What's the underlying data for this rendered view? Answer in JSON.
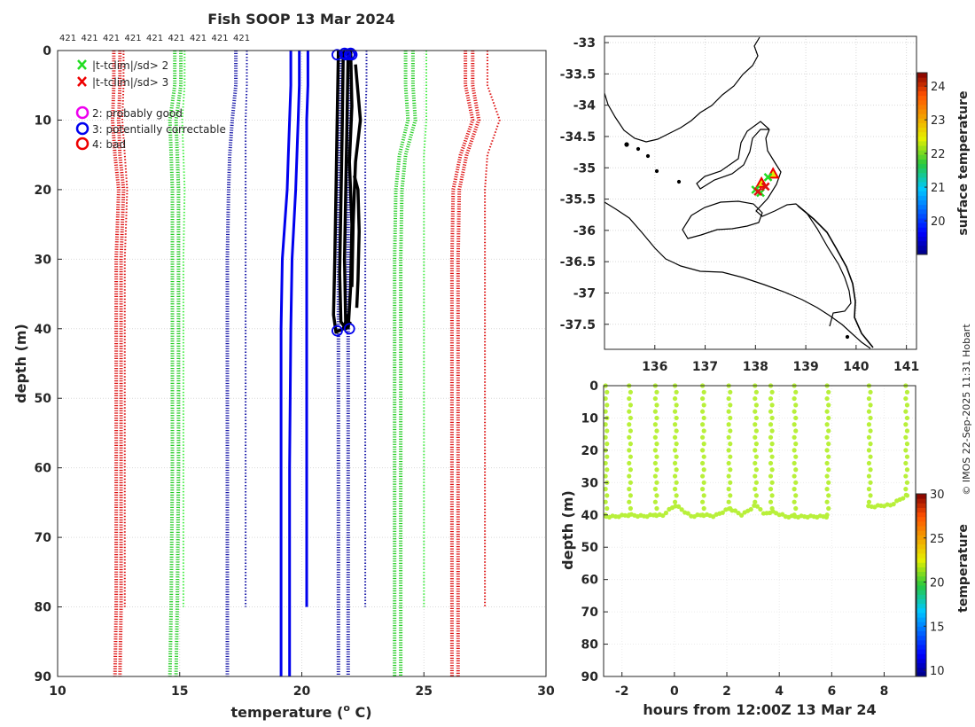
{
  "copyright": "© IMOS 22-Sep-2025 11:31 Hobart",
  "chart_data": [
    {
      "id": "profiles",
      "type": "line",
      "title": "Fish SOOP 13 Mar 2024",
      "xlabel": "temperature (",
      "xlabel_degree": "o",
      "xlabel_tail": " C)",
      "ylabel": "depth (m)",
      "xlim": [
        10,
        30
      ],
      "ylim": [
        0,
        90
      ],
      "y_reversed": true,
      "grid": true,
      "xticks": [
        10,
        15,
        20,
        25,
        30
      ],
      "yticks": [
        0,
        10,
        20,
        30,
        40,
        50,
        60,
        70,
        80,
        90
      ],
      "top_counts": [
        "421",
        "421",
        "421",
        "421",
        "421",
        "421",
        "421",
        "421",
        "421"
      ],
      "legend": {
        "position": "top-left",
        "flags": [
          {
            "label": "|t-tclim|/sd> 2",
            "color": "#22dd22"
          },
          {
            "label": "|t-tclim|/sd> 3",
            "color": "#ee0000"
          }
        ],
        "qc": [
          {
            "label": "2: probably good",
            "color": "#ee00ee"
          },
          {
            "label": "3: potentially correctable",
            "color": "#0000ee"
          },
          {
            "label": "4: bad",
            "color": "#ee0000"
          }
        ]
      },
      "depths": [
        0,
        5,
        10,
        15,
        20,
        30,
        40,
        60,
        80,
        90
      ],
      "climatology": [
        {
          "name": "clim mean",
          "color": "#0000ee",
          "style": "solid",
          "width": 3,
          "temps": [
            [
              19.55,
              19.55,
              19.5,
              19.45,
              19.4,
              19.2,
              19.15,
              19.15,
              19.15,
              19.15
            ],
            [
              19.9,
              19.9,
              19.85,
              19.8,
              19.75,
              19.6,
              19.55,
              19.5,
              19.5,
              19.5
            ],
            [
              20.25,
              20.25,
              20.2,
              20.2,
              20.2,
              20.2,
              20.2,
              20.2,
              20.2,
              null
            ]
          ]
        },
        {
          "name": "mean-2sd",
          "color": "#1a1aa8",
          "style": "dotted",
          "width": 4,
          "temps": [
            [
              17.3,
              17.3,
              17.15,
              17.05,
              17.0,
              16.95,
              16.95,
              16.95,
              16.95,
              16.95
            ]
          ]
        },
        {
          "name": "mean+2sd",
          "color": "#1a1aa8",
          "style": "dotted",
          "width": 4,
          "temps": [
            [
              21.6,
              21.6,
              21.55,
              21.55,
              21.5,
              21.5,
              21.5,
              21.5,
              21.5,
              21.5
            ],
            [
              22.0,
              22.0,
              21.95,
              21.95,
              21.9,
              21.9,
              21.9,
              21.9,
              21.9,
              21.9
            ]
          ]
        },
        {
          "name": "mean-2sd outer",
          "color": "#1a1aa8",
          "style": "dotted",
          "width": 2,
          "temps": [
            [
              17.75,
              17.75,
              17.7,
              17.7,
              17.7,
              17.7,
              17.7,
              17.7,
              17.7,
              null
            ],
            [
              22.65,
              22.65,
              22.6,
              22.6,
              22.6,
              22.6,
              22.6,
              22.6,
              22.6,
              null
            ]
          ]
        },
        {
          "name": "-2sd",
          "color": "#22cc22",
          "style": "dotted",
          "width": 4,
          "temps": [
            [
              14.8,
              14.8,
              14.6,
              14.65,
              14.7,
              14.7,
              14.7,
              14.7,
              14.65,
              14.6
            ],
            [
              15.05,
              15.05,
              14.85,
              14.9,
              14.95,
              14.95,
              14.95,
              14.95,
              14.9,
              14.85
            ]
          ]
        },
        {
          "name": "-2sd outer",
          "color": "#44ee44",
          "style": "dotted",
          "width": 2,
          "temps": [
            [
              15.2,
              15.2,
              15.1,
              15.15,
              15.2,
              15.15,
              15.15,
              15.15,
              15.15,
              null
            ]
          ]
        },
        {
          "name": "+2sd",
          "color": "#22cc22",
          "style": "dotted",
          "width": 4,
          "temps": [
            [
              24.25,
              24.25,
              24.35,
              24.0,
              23.85,
              23.8,
              23.8,
              23.8,
              23.8,
              23.8
            ],
            [
              24.55,
              24.55,
              24.65,
              24.25,
              24.1,
              24.05,
              24.05,
              24.05,
              24.05,
              24.05
            ]
          ]
        },
        {
          "name": "+2sd outer",
          "color": "#44ee44",
          "style": "dotted",
          "width": 2,
          "temps": [
            [
              25.1,
              25.1,
              25.1,
              25.0,
              25.0,
              25.0,
              25.0,
              25.0,
              25.0,
              null
            ]
          ]
        },
        {
          "name": "-3sd",
          "color": "#dd1111",
          "style": "dotted",
          "width": 4,
          "temps": [
            [
              12.3,
              12.3,
              12.25,
              12.35,
              12.5,
              12.4,
              12.4,
              12.4,
              12.4,
              12.35
            ],
            [
              12.55,
              12.55,
              12.5,
              12.55,
              12.7,
              12.6,
              12.6,
              12.6,
              12.6,
              12.55
            ]
          ]
        },
        {
          "name": "-3sd outer",
          "color": "#dd1111",
          "style": "dotted",
          "width": 2,
          "temps": [
            [
              12.7,
              12.7,
              12.65,
              12.75,
              12.85,
              12.75,
              12.75,
              12.75,
              12.75,
              null
            ]
          ]
        },
        {
          "name": "+3sd",
          "color": "#dd1111",
          "style": "dotted",
          "width": 4,
          "temps": [
            [
              26.7,
              26.7,
              27.0,
              26.5,
              26.2,
              26.15,
              26.15,
              26.15,
              26.15,
              26.15
            ],
            [
              27.0,
              27.0,
              27.25,
              26.75,
              26.45,
              26.4,
              26.4,
              26.4,
              26.4,
              26.4
            ]
          ]
        },
        {
          "name": "+3sd outer",
          "color": "#dd1111",
          "style": "dotted",
          "width": 2,
          "temps": [
            [
              27.6,
              27.6,
              28.1,
              27.6,
              27.5,
              27.5,
              27.5,
              27.5,
              27.5,
              null
            ]
          ]
        }
      ],
      "observed": {
        "color": "#000000",
        "traces": [
          [
            [
              21.5,
              0
            ],
            [
              21.45,
              10
            ],
            [
              21.4,
              20
            ],
            [
              21.35,
              30
            ],
            [
              21.3,
              38
            ],
            [
              21.4,
              40.5
            ],
            [
              21.7,
              40
            ],
            [
              21.9,
              38
            ]
          ],
          [
            [
              21.7,
              0
            ],
            [
              21.65,
              12
            ],
            [
              21.6,
              22
            ],
            [
              21.55,
              32
            ],
            [
              21.6,
              39
            ],
            [
              21.8,
              40
            ],
            [
              22.0,
              39
            ]
          ],
          [
            [
              21.9,
              0
            ],
            [
              21.85,
              10
            ],
            [
              21.8,
              20
            ],
            [
              21.75,
              30
            ],
            [
              21.8,
              40
            ]
          ],
          [
            [
              22.0,
              0
            ],
            [
              22.05,
              8
            ],
            [
              21.95,
              16
            ],
            [
              22.05,
              25
            ],
            [
              22.0,
              34
            ],
            [
              21.9,
              40
            ]
          ],
          [
            [
              22.2,
              2
            ],
            [
              22.4,
              10
            ],
            [
              22.2,
              16
            ],
            [
              22.1,
              25
            ],
            [
              22.05,
              34
            ]
          ],
          [
            [
              22.15,
              18
            ],
            [
              22.3,
              20
            ],
            [
              22.35,
              26
            ],
            [
              22.3,
              33
            ],
            [
              22.25,
              37
            ]
          ]
        ],
        "surface_qc_markers": [
          [
            21.45,
            0.6
          ],
          [
            21.8,
            0.6
          ],
          [
            21.95,
            0.6
          ],
          [
            22.05,
            0.6
          ],
          [
            21.75,
            0.4
          ],
          [
            22.0,
            0.4
          ]
        ],
        "bottom_qc_markers": [
          [
            21.45,
            40.3
          ],
          [
            21.95,
            40.0
          ]
        ]
      }
    },
    {
      "id": "map",
      "type": "scatter",
      "xlim": [
        135.0,
        141.2
      ],
      "ylim": [
        -37.9,
        -32.9
      ],
      "xticks": [
        136,
        137,
        138,
        139,
        140,
        141
      ],
      "yticks": [
        -33,
        -33.5,
        -34,
        -34.5,
        -35,
        -35.5,
        -36,
        -36.5,
        -37,
        -37.5
      ],
      "colorbar_label": "surface temperature",
      "colorbar_ticks": [
        20,
        21,
        22,
        23,
        24
      ],
      "colorbar_range": [
        19.0,
        24.4
      ],
      "points": [
        {
          "lon": 138.35,
          "lat": -35.1,
          "marker": "triangle",
          "color": "#e8e800",
          "edge": "#ee0000"
        },
        {
          "lon": 138.12,
          "lat": -35.25,
          "marker": "triangle",
          "color": "#e8e800",
          "edge": "#ee0000"
        },
        {
          "lon": 138.25,
          "lat": -35.15,
          "marker": "x",
          "color": "#22dd22"
        },
        {
          "lon": 138.0,
          "lat": -35.35,
          "marker": "x",
          "color": "#22dd22"
        },
        {
          "lon": 138.1,
          "lat": -35.4,
          "marker": "x",
          "color": "#22dd22"
        },
        {
          "lon": 138.2,
          "lat": -35.3,
          "marker": "x",
          "color": "#dd1111"
        },
        {
          "lon": 138.05,
          "lat": -35.38,
          "marker": "x",
          "color": "#dd1111"
        }
      ]
    },
    {
      "id": "timeseries",
      "type": "scatter",
      "xlabel": "hours from 12:00Z 13 Mar 24",
      "ylabel": "depth (m)",
      "xlim": [
        -2.7,
        9.2
      ],
      "ylim": [
        0,
        90
      ],
      "y_reversed": true,
      "xticks": [
        -2,
        0,
        2,
        4,
        6,
        8
      ],
      "yticks": [
        0,
        10,
        20,
        30,
        40,
        50,
        60,
        70,
        80,
        90
      ],
      "colorbar_label": "temperature",
      "colorbar_ticks": [
        10,
        15,
        20,
        25,
        30
      ],
      "colorbar_range": [
        9.3,
        30.0
      ],
      "point_color": "#b8f03a",
      "segments": [
        {
          "t0": -2.6,
          "t1": 5.9,
          "baseline_depth": 40.5
        },
        {
          "t0": 7.4,
          "t1": 8.9,
          "baseline_depth": 37.0
        }
      ],
      "casts": [
        {
          "t": -2.6,
          "bottom": 40.5
        },
        {
          "t": -1.7,
          "bottom": 40.0
        },
        {
          "t": -0.7,
          "bottom": 40.0
        },
        {
          "t": 0.05,
          "bottom": 37.0
        },
        {
          "t": 1.1,
          "bottom": 40.0
        },
        {
          "t": 2.1,
          "bottom": 38.0
        },
        {
          "t": 3.1,
          "bottom": 37.0
        },
        {
          "t": 3.7,
          "bottom": 39.0
        },
        {
          "t": 4.6,
          "bottom": 40.5
        },
        {
          "t": 5.85,
          "bottom": 40.5
        },
        {
          "t": 7.45,
          "bottom": 37.5
        },
        {
          "t": 8.85,
          "bottom": 34.0
        }
      ]
    }
  ]
}
